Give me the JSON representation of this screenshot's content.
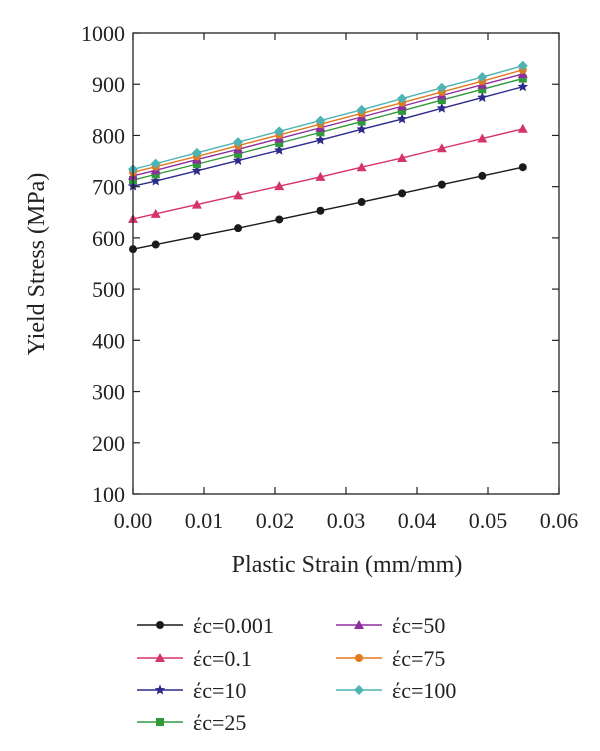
{
  "chart_data": {
    "type": "line",
    "title": "",
    "xlabel": "Plastic Strain (mm/mm)",
    "ylabel": "Yield Stress (MPa)",
    "xlim": [
      0.0,
      0.06
    ],
    "ylim": [
      100,
      1000
    ],
    "x_ticks": [
      0.0,
      0.01,
      0.02,
      0.03,
      0.04,
      0.05,
      0.06
    ],
    "x_tick_labels": [
      "0.00",
      "0.01",
      "0.02",
      "0.03",
      "0.04",
      "0.05",
      "0.06"
    ],
    "y_ticks": [
      100,
      200,
      300,
      400,
      500,
      600,
      700,
      800,
      900,
      1000
    ],
    "y_tick_labels": [
      "100",
      "200",
      "300",
      "400",
      "500",
      "600",
      "700",
      "800",
      "900",
      "1000"
    ],
    "grid": false,
    "legend_position": "bottom",
    "x": [
      0.0,
      0.0032,
      0.009,
      0.0148,
      0.0206,
      0.0264,
      0.0322,
      0.0379,
      0.0435,
      0.0492,
      0.0549
    ],
    "series": [
      {
        "name": "έc=0.001",
        "color": "#1a1a1a",
        "marker": "circle",
        "values": [
          578,
          587,
          603,
          619,
          636,
          653,
          670,
          687,
          704,
          721,
          738
        ]
      },
      {
        "name": "έc=0.1",
        "color": "#d6336c",
        "marker": "triangle",
        "values": [
          637,
          647,
          665,
          683,
          701,
          719,
          738,
          756,
          775,
          794,
          813
        ]
      },
      {
        "name": "έc=10",
        "color": "#2e2a8c",
        "marker": "star",
        "values": [
          701,
          711,
          731,
          751,
          771,
          791,
          812,
          832,
          853,
          874,
          895
        ]
      },
      {
        "name": "έc=25",
        "color": "#2f9a3a",
        "marker": "square",
        "values": [
          713,
          724,
          744,
          764,
          785,
          806,
          827,
          848,
          869,
          890,
          911
        ]
      },
      {
        "name": "έc=50",
        "color": "#8e2f9e",
        "marker": "triangle",
        "values": [
          721,
          732,
          753,
          773,
          794,
          815,
          836,
          857,
          878,
          899,
          920
        ]
      },
      {
        "name": "έc=75",
        "color": "#e07b1f",
        "marker": "circle",
        "values": [
          728,
          739,
          759,
          780,
          801,
          822,
          843,
          864,
          885,
          906,
          928
        ]
      },
      {
        "name": "έc=100",
        "color": "#4db3b3",
        "marker": "diamond",
        "values": [
          734,
          745,
          766,
          787,
          808,
          829,
          850,
          872,
          893,
          914,
          936
        ]
      }
    ]
  }
}
